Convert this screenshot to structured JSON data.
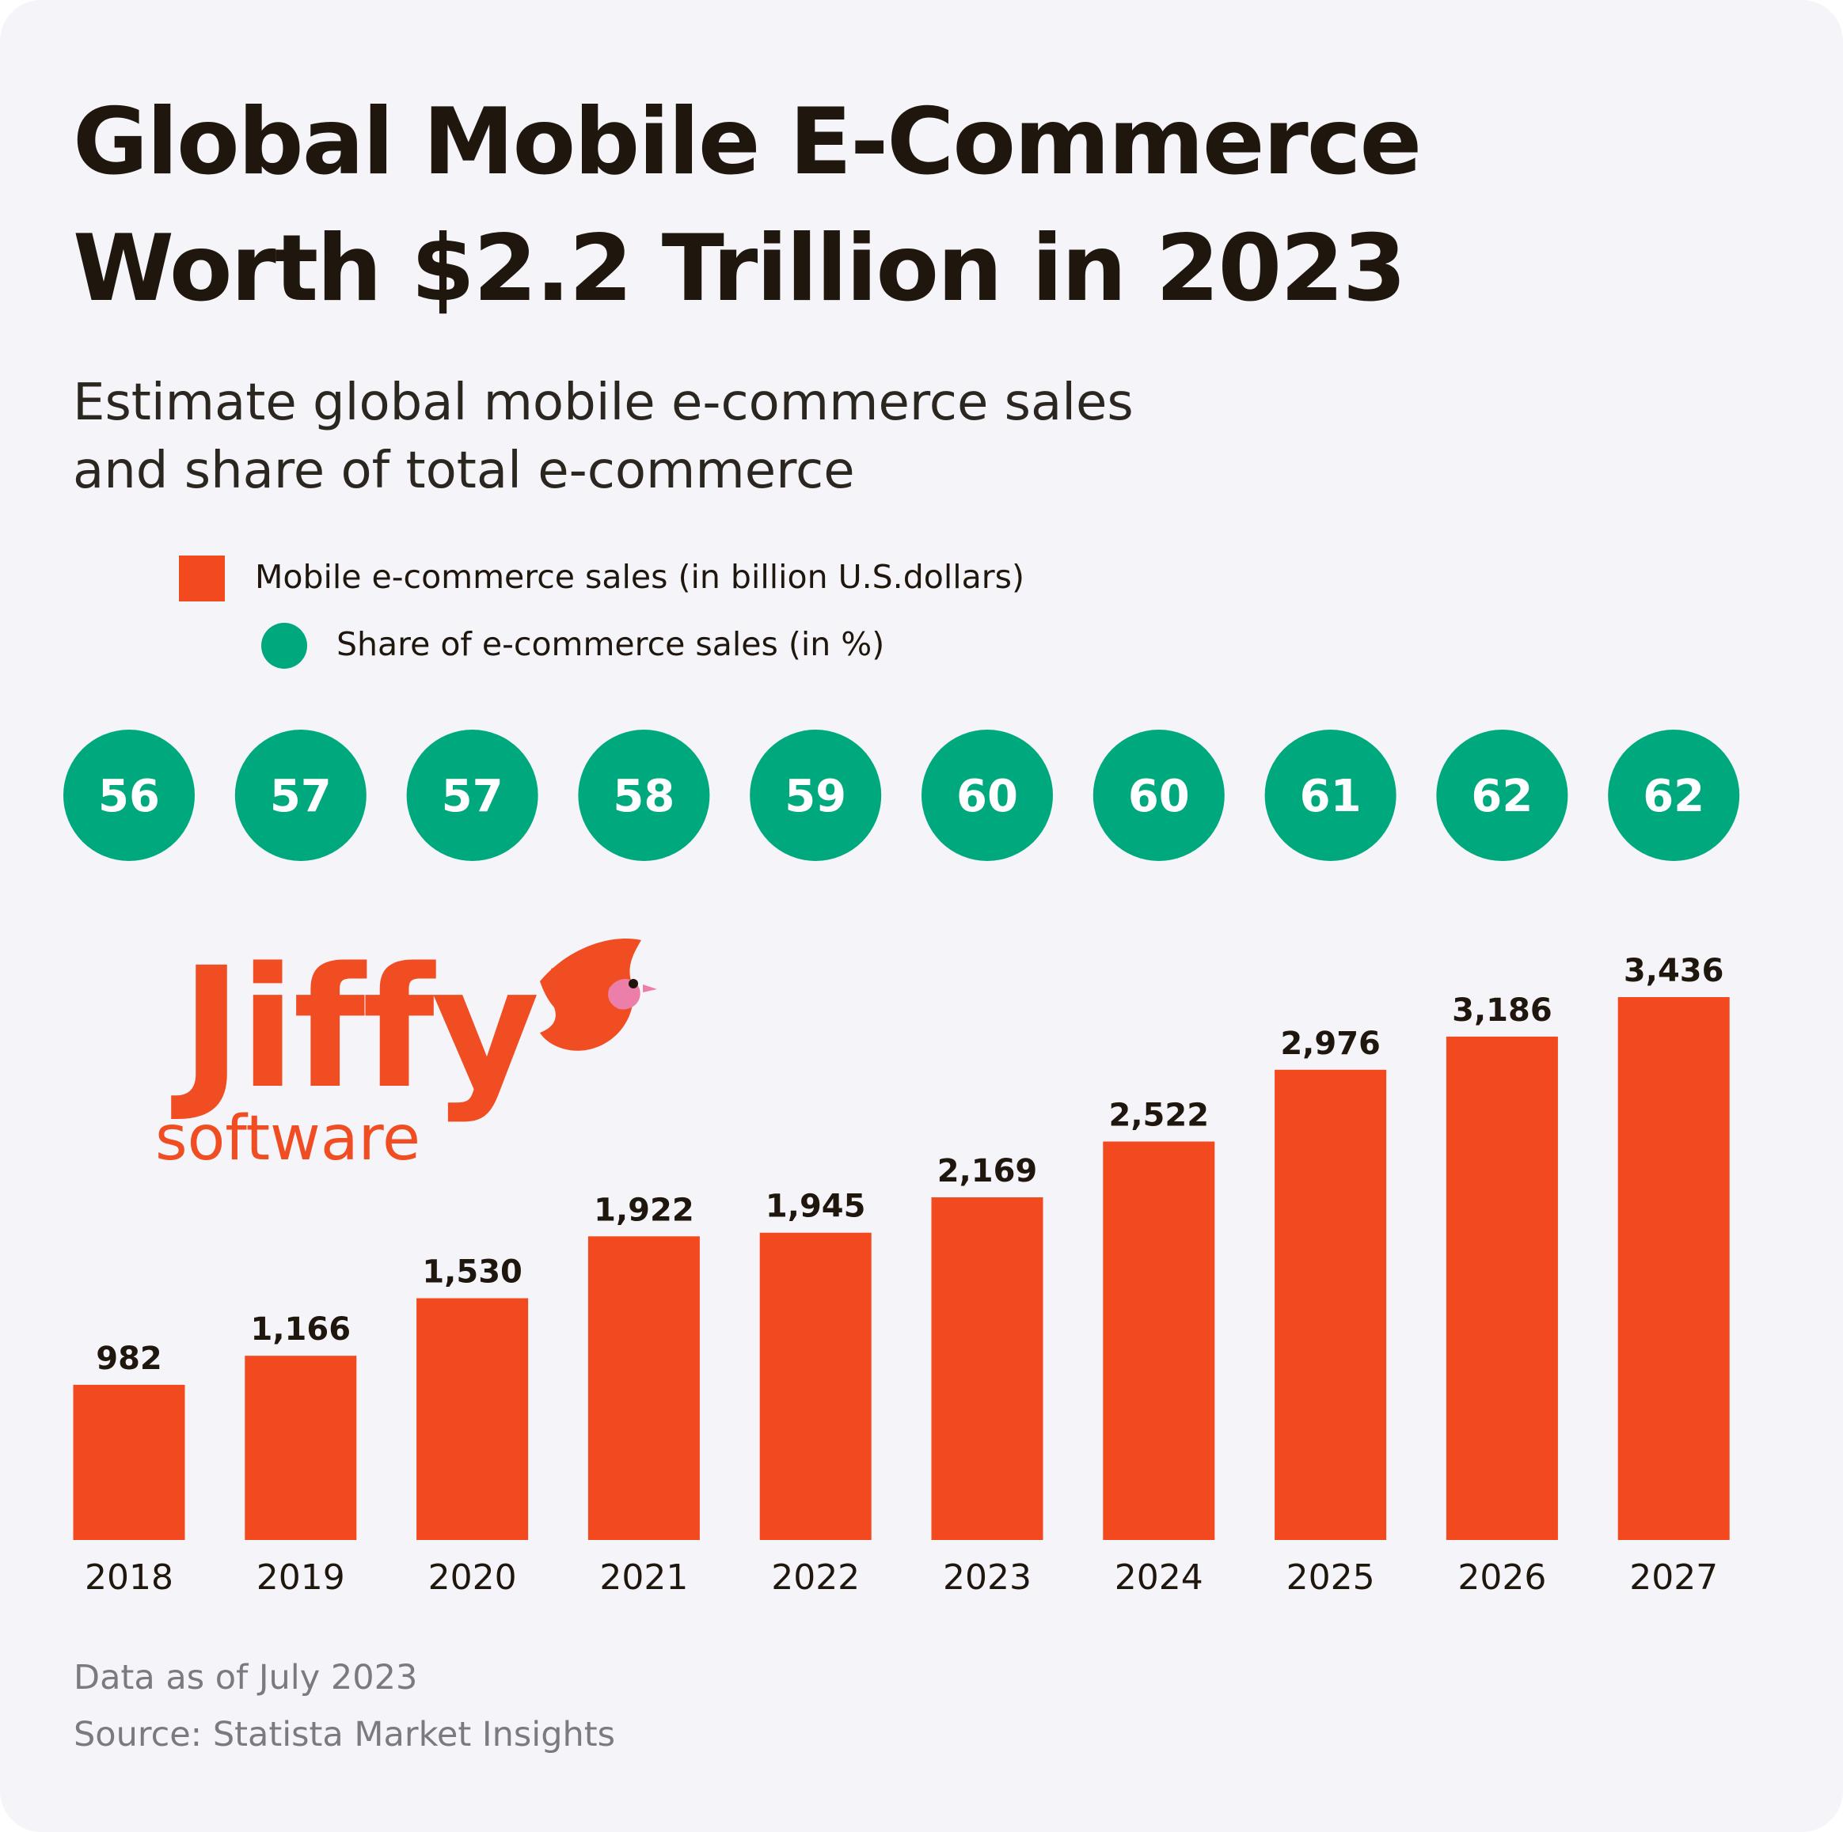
{
  "header": {
    "title_line1": "Global Mobile E-Commerce",
    "title_line2": "Worth $2.2 Trillion in 2023",
    "subtitle_line1": "Estimate global mobile e-commerce sales",
    "subtitle_line2": "and share of total e-commerce"
  },
  "legend": {
    "bars_label": "Mobile e-commerce sales (in billion U.S.dollars)",
    "share_label": "Share of e-commerce sales (in %)"
  },
  "logo": {
    "wordmark": "Jiffy",
    "tagline": "software",
    "icon": "bird-icon"
  },
  "footer": {
    "note": "Data as of July 2023",
    "source": "Source: Statista Market Insights"
  },
  "colors": {
    "bar": "#f24a1e",
    "share_circle": "#00a87e",
    "background": "#f4f4f9",
    "text": "#1f160e",
    "logo": "#f04d23"
  },
  "chart_data": {
    "type": "bar",
    "categories": [
      "2018",
      "2019",
      "2020",
      "2021",
      "2022",
      "2023",
      "2024",
      "2025",
      "2026",
      "2027"
    ],
    "series": [
      {
        "name": "Mobile e-commerce sales (in billion U.S.dollars)",
        "values": [
          982,
          1166,
          1530,
          1922,
          1945,
          2169,
          2522,
          2976,
          3186,
          3436
        ],
        "labels": [
          "982",
          "1,166",
          "1,530",
          "1,922",
          "1,945",
          "2,169",
          "2,522",
          "2,976",
          "3,186",
          "3,436"
        ]
      },
      {
        "name": "Share of e-commerce sales (in %)",
        "values": [
          56,
          57,
          57,
          58,
          59,
          60,
          60,
          61,
          62,
          62
        ]
      }
    ],
    "ylim": [
      0,
      3436
    ],
    "grid": false,
    "legend_position": "top-left"
  }
}
